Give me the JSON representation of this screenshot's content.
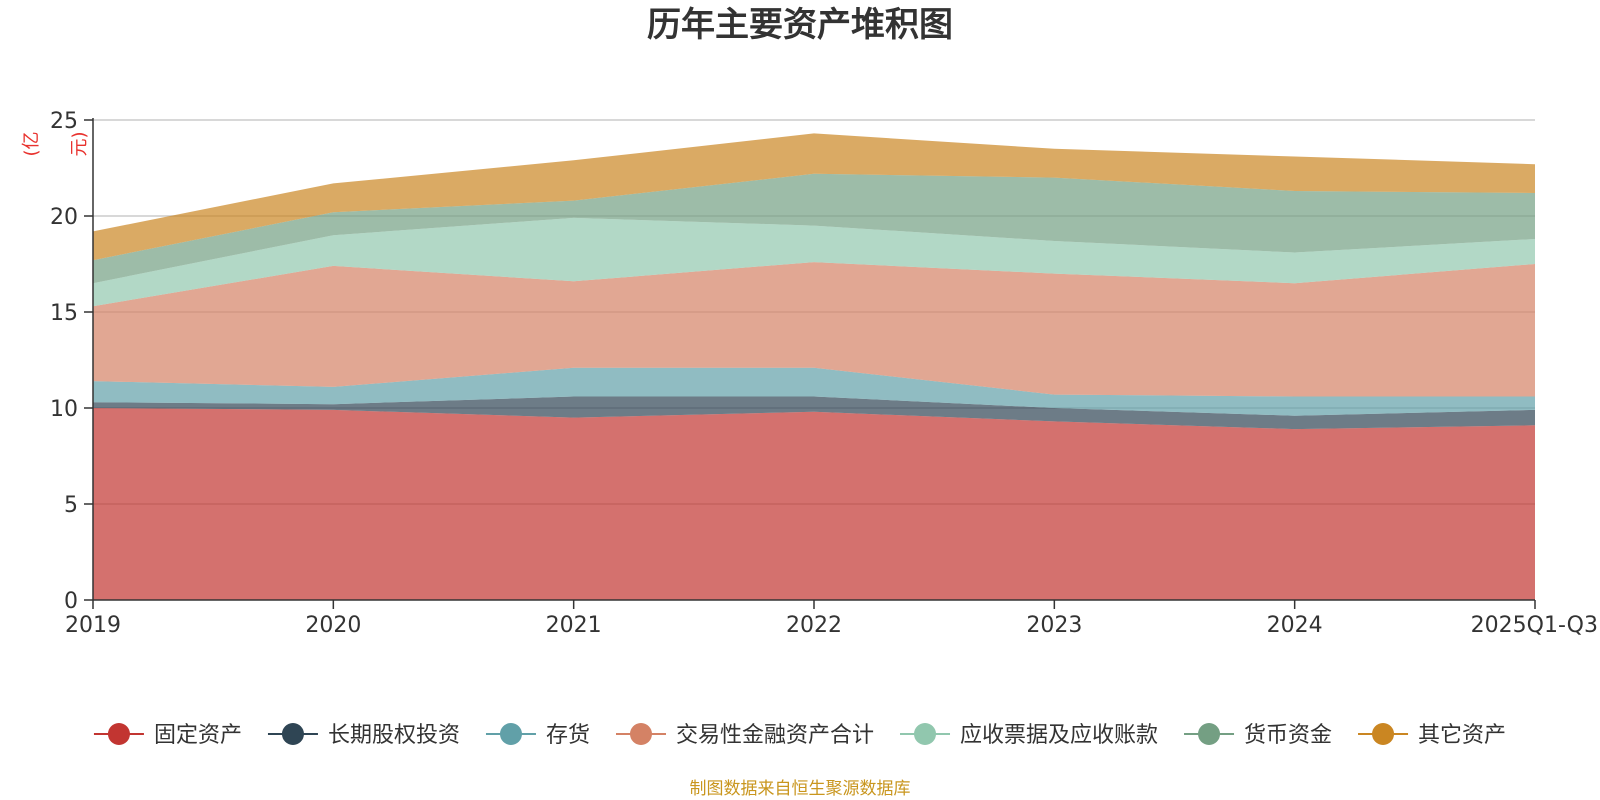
{
  "chart_data": {
    "type": "area",
    "stacked": true,
    "title": "历年主要资产堆积图",
    "unit_label": "(亿元)",
    "source_note": "制图数据来自恒生聚源数据库",
    "categories": [
      "2019",
      "2020",
      "2021",
      "2022",
      "2023",
      "2024",
      "2025Q1-Q3"
    ],
    "ylim": [
      0,
      25
    ],
    "yticks": [
      0,
      5,
      10,
      15,
      20,
      25
    ],
    "grid": true,
    "legend_position": "bottom",
    "series": [
      {
        "name": "固定资产",
        "color": "#c23531",
        "values": [
          10.0,
          9.9,
          9.5,
          9.8,
          9.3,
          8.9,
          9.1
        ]
      },
      {
        "name": "长期股权投资",
        "color": "#2f4554",
        "values": [
          0.3,
          0.3,
          1.1,
          0.8,
          0.7,
          0.7,
          0.8
        ]
      },
      {
        "name": "存货",
        "color": "#61a0a8",
        "values": [
          1.1,
          0.9,
          1.5,
          1.5,
          0.7,
          1.0,
          0.7
        ]
      },
      {
        "name": "交易性金融资产合计",
        "color": "#d48265",
        "values": [
          3.9,
          6.3,
          4.5,
          5.5,
          6.3,
          5.9,
          6.9
        ]
      },
      {
        "name": "应收票据及应收账款",
        "color": "#91c7ae",
        "values": [
          1.2,
          1.6,
          3.3,
          1.9,
          1.7,
          1.6,
          1.3
        ]
      },
      {
        "name": "货币资金",
        "color": "#749f83",
        "values": [
          1.2,
          1.2,
          0.9,
          2.7,
          3.3,
          3.2,
          2.4
        ]
      },
      {
        "name": "其它资产",
        "color": "#ca8622",
        "values": [
          1.5,
          1.5,
          2.1,
          2.1,
          1.5,
          1.8,
          1.5
        ]
      }
    ]
  }
}
